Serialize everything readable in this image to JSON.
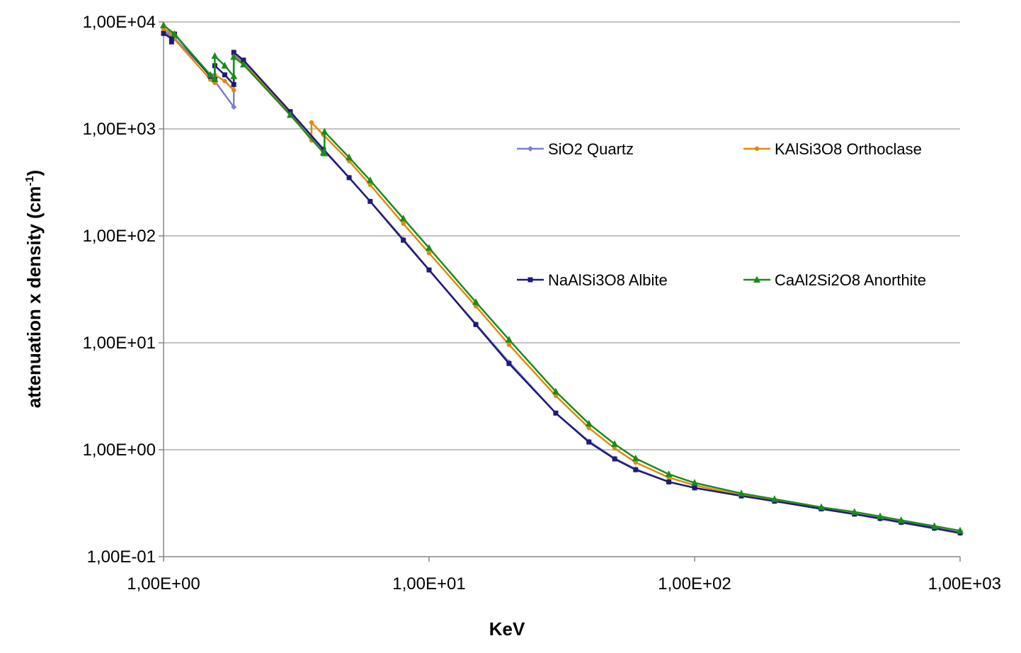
{
  "chart_data": {
    "type": "line",
    "title": "",
    "xlabel": "KeV",
    "ylabel": "attenuation x density (cm",
    "ylabel_sup": "-1",
    "ylabel_close": ")",
    "x_scale": "log",
    "y_scale": "log",
    "xlim": [
      1,
      1000
    ],
    "ylim": [
      0.1,
      10000
    ],
    "x_tick_values": [
      1,
      10,
      100,
      1000
    ],
    "x_tick_labels": [
      "1,00E+00",
      "1,00E+01",
      "1,00E+02",
      "1,00E+03"
    ],
    "y_tick_values": [
      0.1,
      1,
      10,
      100,
      1000,
      10000
    ],
    "y_tick_labels": [
      "1,00E-01",
      "1,00E+00",
      "1,00E+01",
      "1,00E+02",
      "1,00E+03",
      "1,00E+04"
    ],
    "grid": "horizontal",
    "legend_placement": "inside-right",
    "series": [
      {
        "name": "SiO2 Quartz",
        "color": "#7b7fd0",
        "marker": "diamond",
        "points": [
          [
            1.0,
            8200
          ],
          [
            1.0414,
            7700
          ],
          [
            1.0721,
            7300
          ],
          [
            1.1,
            7000
          ],
          [
            1.5,
            3200
          ],
          [
            1.8389,
            1600
          ],
          [
            1.8389,
            5000
          ],
          [
            2.0,
            4300
          ],
          [
            3.0,
            1450
          ],
          [
            4.0,
            650
          ],
          [
            5.0,
            350
          ],
          [
            6.0,
            210
          ],
          [
            8.0,
            93
          ],
          [
            10.0,
            48
          ],
          [
            15.0,
            15
          ],
          [
            20.0,
            6.6
          ],
          [
            30.0,
            2.2
          ],
          [
            40.0,
            1.2
          ],
          [
            50.0,
            0.83
          ],
          [
            60.0,
            0.66
          ],
          [
            80.0,
            0.5
          ],
          [
            100.0,
            0.44
          ],
          [
            150.0,
            0.37
          ],
          [
            200.0,
            0.33
          ],
          [
            300.0,
            0.28
          ],
          [
            400.0,
            0.25
          ],
          [
            500.0,
            0.225
          ],
          [
            600.0,
            0.208
          ],
          [
            800.0,
            0.183
          ],
          [
            1000.0,
            0.165
          ]
        ]
      },
      {
        "name": "KAlSi3O8 Orthoclase",
        "color": "#e08a0c",
        "marker": "circle",
        "points": [
          [
            1.0,
            8600
          ],
          [
            1.0721,
            7900
          ],
          [
            1.0721,
            7400
          ],
          [
            1.5,
            2900
          ],
          [
            1.5596,
            2700
          ],
          [
            1.5596,
            3200
          ],
          [
            1.7,
            2800
          ],
          [
            1.8389,
            2300
          ],
          [
            1.8389,
            4800
          ],
          [
            2.0,
            4100
          ],
          [
            3.0,
            1400
          ],
          [
            3.6074,
            780
          ],
          [
            3.6074,
            1150
          ],
          [
            4.0,
            880
          ],
          [
            5.0,
            500
          ],
          [
            6.0,
            300
          ],
          [
            8.0,
            130
          ],
          [
            10.0,
            69
          ],
          [
            15.0,
            22
          ],
          [
            20.0,
            9.6
          ],
          [
            30.0,
            3.2
          ],
          [
            40.0,
            1.6
          ],
          [
            50.0,
            1.03
          ],
          [
            60.0,
            0.76
          ],
          [
            80.0,
            0.55
          ],
          [
            100.0,
            0.465
          ],
          [
            150.0,
            0.375
          ],
          [
            200.0,
            0.335
          ],
          [
            300.0,
            0.28
          ],
          [
            400.0,
            0.25
          ],
          [
            500.0,
            0.228
          ],
          [
            600.0,
            0.21
          ],
          [
            800.0,
            0.185
          ],
          [
            1000.0,
            0.165
          ]
        ]
      },
      {
        "name": "NaAlSi3O8 Albite",
        "color": "#1f1a7a",
        "marker": "square",
        "points": [
          [
            1.0,
            7800
          ],
          [
            1.0721,
            7000
          ],
          [
            1.0721,
            6500
          ],
          [
            1.1,
            7700
          ],
          [
            1.5,
            3100
          ],
          [
            1.5596,
            2900
          ],
          [
            1.5596,
            3900
          ],
          [
            1.7,
            3200
          ],
          [
            1.8389,
            2600
          ],
          [
            1.8389,
            5200
          ],
          [
            2.0,
            4400
          ],
          [
            3.0,
            1450
          ],
          [
            4.0,
            640
          ],
          [
            5.0,
            350
          ],
          [
            6.0,
            210
          ],
          [
            8.0,
            91
          ],
          [
            10.0,
            48
          ],
          [
            15.0,
            14.8
          ],
          [
            20.0,
            6.4
          ],
          [
            30.0,
            2.2
          ],
          [
            40.0,
            1.18
          ],
          [
            50.0,
            0.82
          ],
          [
            60.0,
            0.65
          ],
          [
            80.0,
            0.5
          ],
          [
            100.0,
            0.44
          ],
          [
            150.0,
            0.37
          ],
          [
            200.0,
            0.33
          ],
          [
            300.0,
            0.28
          ],
          [
            400.0,
            0.25
          ],
          [
            500.0,
            0.228
          ],
          [
            600.0,
            0.21
          ],
          [
            800.0,
            0.185
          ],
          [
            1000.0,
            0.167
          ]
        ]
      },
      {
        "name": "CaAl2Si2O8 Anorthite",
        "color": "#1a8c1a",
        "marker": "triangle",
        "points": [
          [
            1.0,
            9300
          ],
          [
            1.1,
            7700
          ],
          [
            1.5,
            3200
          ],
          [
            1.5596,
            2900
          ],
          [
            1.5596,
            4800
          ],
          [
            1.7,
            3900
          ],
          [
            1.8389,
            3100
          ],
          [
            1.8389,
            4700
          ],
          [
            2.0,
            4000
          ],
          [
            3.0,
            1350
          ],
          [
            4.0,
            600
          ],
          [
            4.0381,
            590
          ],
          [
            4.0381,
            940
          ],
          [
            5.0,
            540
          ],
          [
            6.0,
            330
          ],
          [
            8.0,
            145
          ],
          [
            10.0,
            77
          ],
          [
            15.0,
            24
          ],
          [
            20.0,
            10.7
          ],
          [
            30.0,
            3.5
          ],
          [
            40.0,
            1.75
          ],
          [
            50.0,
            1.13
          ],
          [
            60.0,
            0.83
          ],
          [
            80.0,
            0.59
          ],
          [
            100.0,
            0.49
          ],
          [
            150.0,
            0.39
          ],
          [
            200.0,
            0.345
          ],
          [
            300.0,
            0.29
          ],
          [
            400.0,
            0.262
          ],
          [
            500.0,
            0.238
          ],
          [
            600.0,
            0.219
          ],
          [
            800.0,
            0.193
          ],
          [
            1000.0,
            0.175
          ]
        ]
      }
    ]
  }
}
